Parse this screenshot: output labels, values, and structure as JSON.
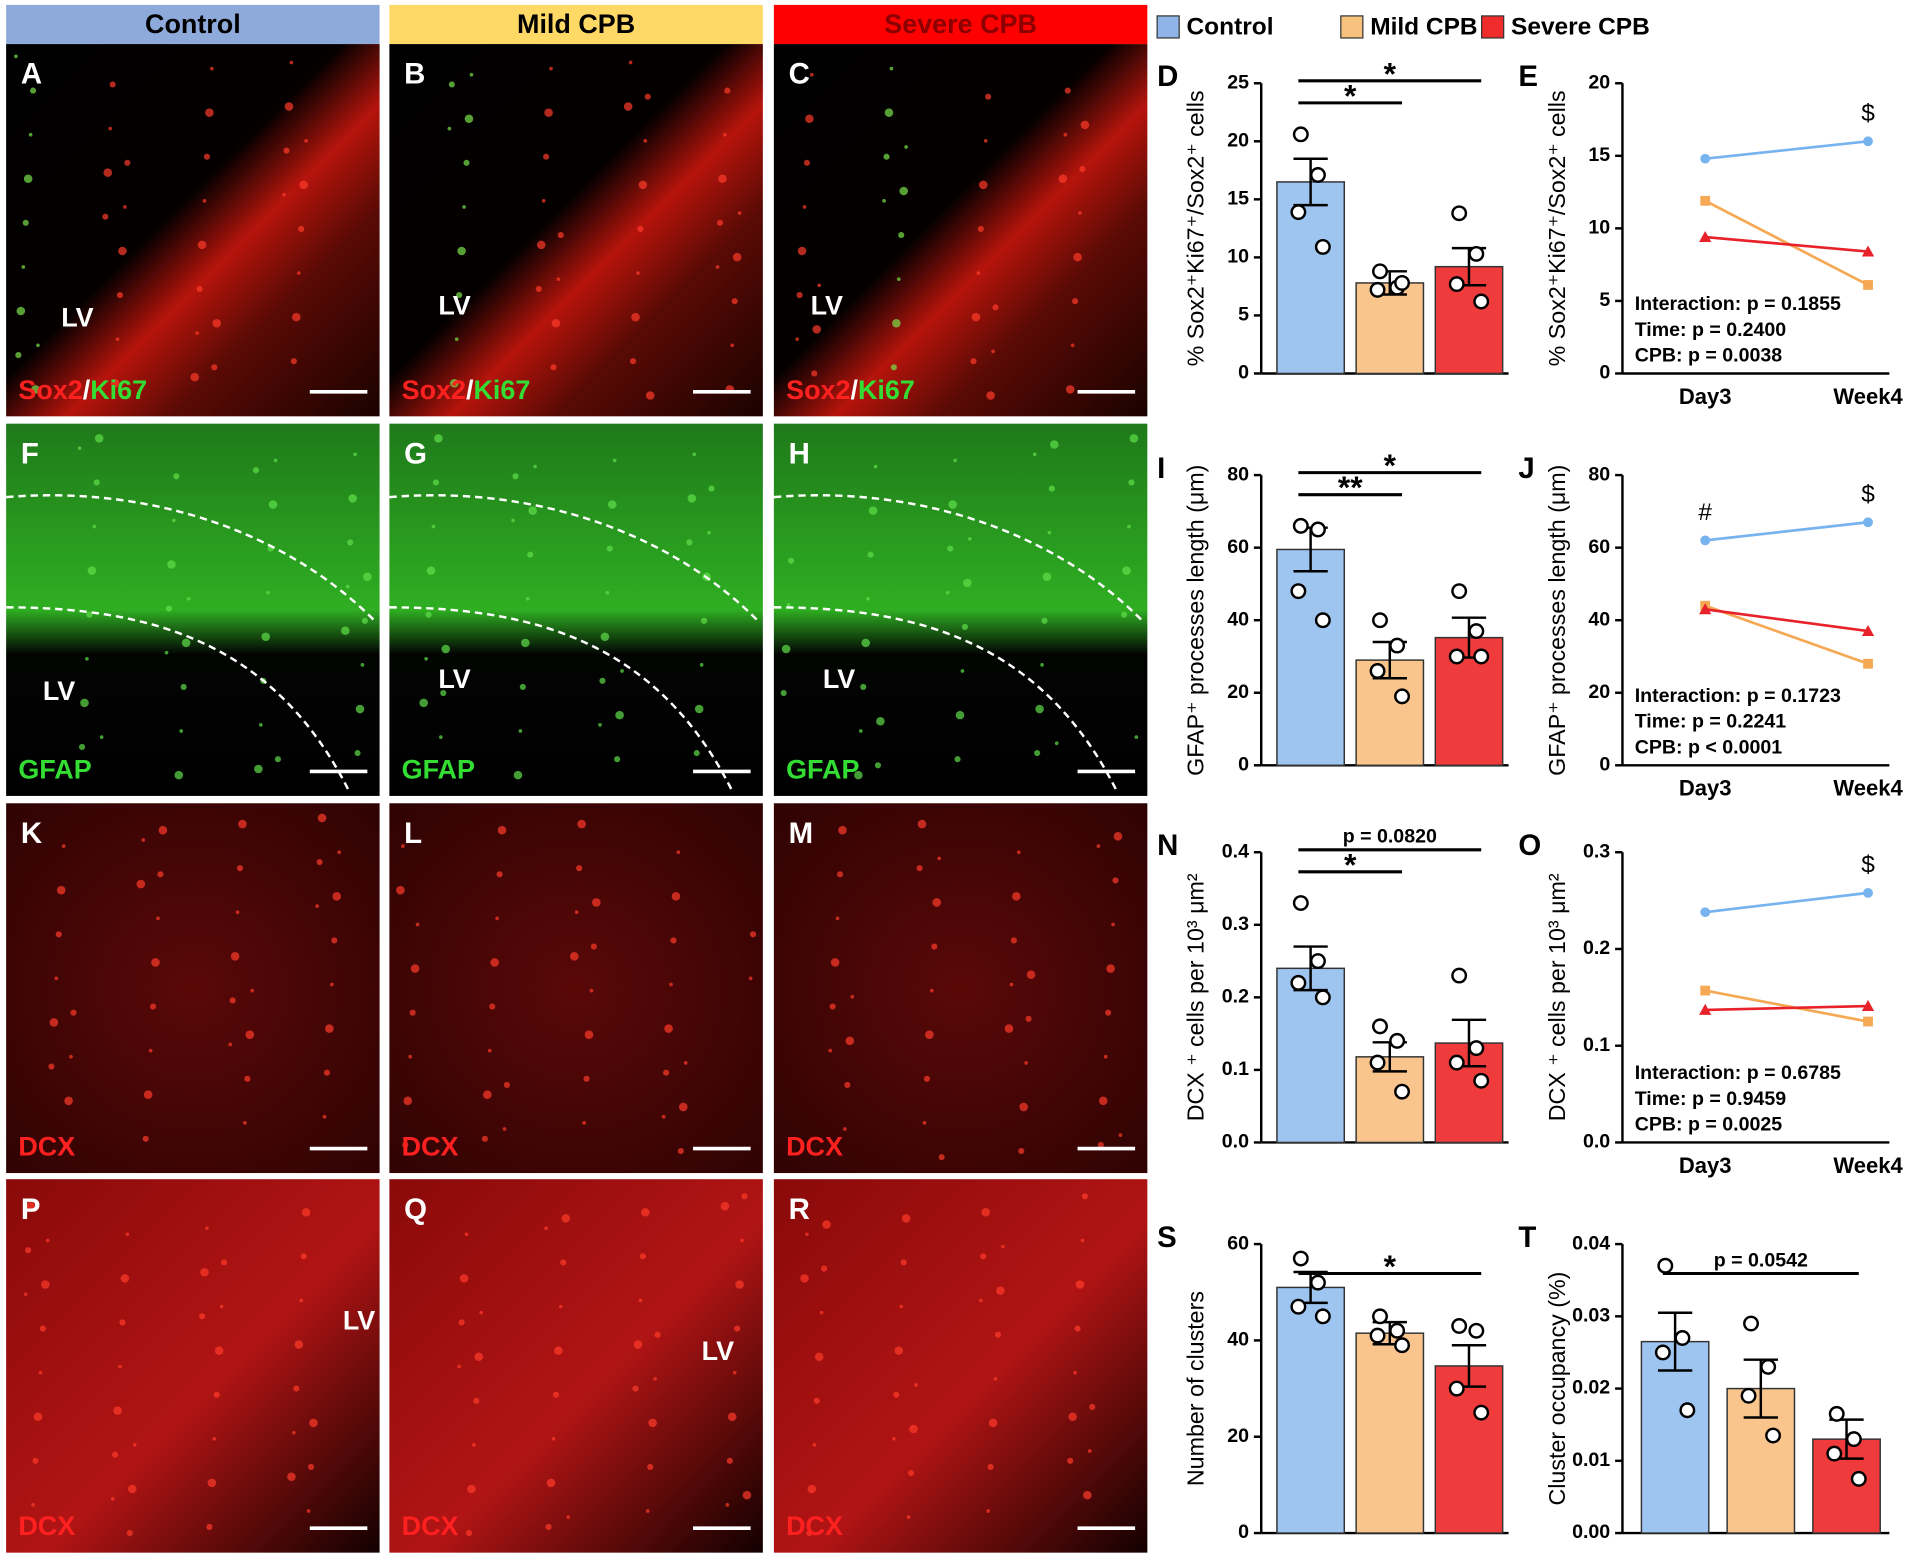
{
  "header": [
    {
      "text": "Control",
      "color": "#8eaadb",
      "text_color": "#000000"
    },
    {
      "text": "Mild CPB",
      "color": "#ffd966",
      "text_color": "#000000"
    },
    {
      "text": "Severe CPB",
      "color": "#ff0000",
      "text_color": "#8b0000"
    }
  ],
  "legend": [
    {
      "name": "Control",
      "color": "#8fb4e8"
    },
    {
      "name": "Mild CPB",
      "color": "#f7c27e"
    },
    {
      "name": "Severe CPB",
      "color": "#ef2b2b"
    }
  ],
  "images": [
    {
      "letter": "A",
      "lv": "LV",
      "stain": [
        {
          "text": "Sox2",
          "color": "#ff2020"
        },
        {
          "text": "/",
          "color": "#ffffff"
        },
        {
          "text": "Ki67",
          "color": "#33dd33"
        }
      ]
    },
    {
      "letter": "B",
      "lv": "LV",
      "stain": [
        {
          "text": "Sox2",
          "color": "#ff2020"
        },
        {
          "text": "/",
          "color": "#ffffff"
        },
        {
          "text": "Ki67",
          "color": "#33dd33"
        }
      ]
    },
    {
      "letter": "C",
      "lv": "LV",
      "stain": [
        {
          "text": "Sox2",
          "color": "#ff2020"
        },
        {
          "text": "/",
          "color": "#ffffff"
        },
        {
          "text": "Ki67",
          "color": "#33dd33"
        }
      ]
    },
    {
      "letter": "F",
      "lv": "LV",
      "stain": [
        {
          "text": "GFAP",
          "color": "#33dd33"
        }
      ]
    },
    {
      "letter": "G",
      "lv": "LV",
      "stain": [
        {
          "text": "GFAP",
          "color": "#33dd33"
        }
      ]
    },
    {
      "letter": "H",
      "lv": "LV",
      "stain": [
        {
          "text": "GFAP",
          "color": "#33dd33"
        }
      ]
    },
    {
      "letter": "K",
      "stain": [
        {
          "text": "DCX",
          "color": "#ff2020"
        }
      ]
    },
    {
      "letter": "L",
      "stain": [
        {
          "text": "DCX",
          "color": "#ff2020"
        }
      ]
    },
    {
      "letter": "M",
      "stain": [
        {
          "text": "DCX",
          "color": "#ff2020"
        }
      ]
    },
    {
      "letter": "P",
      "lv": "LV",
      "stain": [
        {
          "text": "DCX",
          "color": "#ff2020"
        }
      ]
    },
    {
      "letter": "Q",
      "lv": "LV",
      "stain": [
        {
          "text": "DCX",
          "color": "#ff2020"
        }
      ]
    },
    {
      "letter": "R",
      "stain": [
        {
          "text": "DCX",
          "color": "#ff2020"
        }
      ]
    }
  ],
  "chart_data": [
    {
      "type": "bar",
      "panel": "D",
      "ylabel": "% Sox2⁺Ki67⁺/Sox2⁺ cells",
      "ylim": [
        0,
        25
      ],
      "yticks": [
        0,
        5,
        10,
        15,
        20,
        25
      ],
      "values": [
        16.5,
        7.8,
        9.2
      ],
      "errors": [
        2.0,
        1.0,
        1.6
      ],
      "colors": [
        "#9ec4f0",
        "#f9c58d",
        "#ef3b3b"
      ],
      "points": [
        [
          20.6,
          17.1,
          13.9,
          10.9
        ],
        [
          8.8,
          7.4,
          7.2,
          7.8
        ],
        [
          13.8,
          10.3,
          7.7,
          6.2
        ]
      ],
      "annotations": [
        {
          "from": 0,
          "to": 1,
          "label": "*"
        },
        {
          "from": 0,
          "to": 2,
          "label": "*"
        }
      ]
    },
    {
      "type": "line",
      "panel": "E",
      "ylabel": "% Sox2⁺Ki67⁺/Sox2⁺ cells",
      "ylim": [
        0,
        20
      ],
      "yticks": [
        0,
        5,
        10,
        15,
        20
      ],
      "categories": [
        "Day3",
        "Week4"
      ],
      "series": [
        {
          "color": "#77b3ee",
          "marker": "circle",
          "values": [
            14.8,
            16.0
          ]
        },
        {
          "color": "#f5a955",
          "marker": "square",
          "values": [
            11.9,
            6.1
          ]
        },
        {
          "color": "#e8222a",
          "marker": "triangle",
          "values": [
            9.4,
            8.4
          ]
        }
      ],
      "marks": [
        {
          "label": "$",
          "series": 0,
          "index": 1
        }
      ],
      "stats": [
        "Interaction: p = 0.1855",
        "Time: p = 0.2400",
        "CPB: p = 0.0038"
      ]
    },
    {
      "type": "bar",
      "panel": "I",
      "ylabel": "GFAP⁺ processes length (μm)",
      "ylim": [
        0,
        80
      ],
      "yticks": [
        0,
        20,
        40,
        60,
        80
      ],
      "values": [
        59.5,
        29.0,
        35.2
      ],
      "errors": [
        6.0,
        5.0,
        5.5
      ],
      "colors": [
        "#9ec4f0",
        "#f9c58d",
        "#ef3b3b"
      ],
      "points": [
        [
          66,
          65,
          48,
          40
        ],
        [
          40,
          33,
          26,
          19
        ],
        [
          48,
          37,
          30,
          30
        ]
      ],
      "annotations": [
        {
          "from": 0,
          "to": 1,
          "label": "**"
        },
        {
          "from": 0,
          "to": 2,
          "label": "*"
        }
      ]
    },
    {
      "type": "line",
      "panel": "J",
      "ylabel": "GFAP⁺ processes length (μm)",
      "ylim": [
        0,
        80
      ],
      "yticks": [
        0,
        20,
        40,
        60,
        80
      ],
      "categories": [
        "Day3",
        "Week4"
      ],
      "series": [
        {
          "color": "#77b3ee",
          "marker": "circle",
          "values": [
            62,
            67
          ]
        },
        {
          "color": "#f5a955",
          "marker": "square",
          "values": [
            44,
            28
          ]
        },
        {
          "color": "#e8222a",
          "marker": "triangle",
          "values": [
            43,
            37
          ]
        }
      ],
      "marks": [
        {
          "label": "#",
          "series": 0,
          "index": 0
        },
        {
          "label": "$",
          "series": 0,
          "index": 1
        }
      ],
      "stats": [
        "Interaction: p = 0.1723",
        "Time: p = 0.2241",
        "CPB: p < 0.0001"
      ]
    },
    {
      "type": "bar",
      "panel": "N",
      "ylabel": "DCX ⁺ cells per 10³ μm²",
      "ylim": [
        0,
        0.4
      ],
      "yticks": [
        {
          "value": 0,
          "label": "0.0"
        },
        0.1,
        0.2,
        0.3,
        0.4
      ],
      "values": [
        0.24,
        0.118,
        0.137
      ],
      "errors": [
        0.03,
        0.02,
        0.032
      ],
      "colors": [
        "#9ec4f0",
        "#f9c58d",
        "#ef3b3b"
      ],
      "points": [
        [
          0.33,
          0.25,
          0.22,
          0.2
        ],
        [
          0.16,
          0.14,
          0.11,
          0.07
        ],
        [
          0.23,
          0.13,
          0.11,
          0.085
        ]
      ],
      "annotations": [
        {
          "from": 0,
          "to": 1,
          "label": "*"
        },
        {
          "from": 0,
          "to": 2,
          "label": "p = 0.0820"
        }
      ]
    },
    {
      "type": "line",
      "panel": "O",
      "ylabel": "DCX ⁺ cells per 10³ μm²",
      "ylim": [
        0,
        0.3
      ],
      "yticks": [
        {
          "value": 0,
          "label": "0.0"
        },
        0.1,
        0.2,
        0.3
      ],
      "categories": [
        "Day3",
        "Week4"
      ],
      "series": [
        {
          "color": "#77b3ee",
          "marker": "circle",
          "values": [
            0.238,
            0.258
          ]
        },
        {
          "color": "#f5a955",
          "marker": "square",
          "values": [
            0.157,
            0.125
          ]
        },
        {
          "color": "#e8222a",
          "marker": "triangle",
          "values": [
            0.137,
            0.141
          ]
        }
      ],
      "marks": [
        {
          "label": "$",
          "series": 0,
          "index": 1
        }
      ],
      "stats": [
        "Interaction: p = 0.6785",
        "Time: p = 0.9459",
        "CPB: p = 0.0025"
      ]
    },
    {
      "type": "bar",
      "panel": "S",
      "ylabel": "Number of clusters",
      "ylim": [
        0,
        60
      ],
      "yticks": [
        0,
        20,
        40,
        60
      ],
      "values": [
        51,
        41.5,
        34.7
      ],
      "errors": [
        3.2,
        2.3,
        4.3
      ],
      "colors": [
        "#9ec4f0",
        "#f9c58d",
        "#ef3b3b"
      ],
      "points": [
        [
          57,
          52,
          47,
          45
        ],
        [
          45,
          42,
          41,
          39
        ],
        [
          43,
          42,
          30,
          25
        ]
      ],
      "annotations": [
        {
          "from": 0,
          "to": 2,
          "label": "*"
        }
      ]
    },
    {
      "type": "bar",
      "panel": "T",
      "ylabel": "Cluster occupancy (%)",
      "ylim": [
        0,
        0.04
      ],
      "yticks": [
        {
          "value": 0,
          "label": "0.00"
        },
        {
          "value": 0.01,
          "label": "0.01"
        },
        {
          "value": 0.02,
          "label": "0.02"
        },
        {
          "value": 0.03,
          "label": "0.03"
        },
        {
          "value": 0.04,
          "label": "0.04"
        }
      ],
      "values": [
        0.0265,
        0.02,
        0.013
      ],
      "errors": [
        0.004,
        0.004,
        0.0027
      ],
      "colors": [
        "#9ec4f0",
        "#f9c58d",
        "#ef3b3b"
      ],
      "points": [
        [
          0.037,
          0.027,
          0.025,
          0.017
        ],
        [
          0.029,
          0.023,
          0.019,
          0.0135
        ],
        [
          0.0165,
          0.013,
          0.011,
          0.0075
        ]
      ],
      "annotations": [
        {
          "from": 0,
          "to": 2,
          "label": "p = 0.0542"
        }
      ]
    }
  ]
}
